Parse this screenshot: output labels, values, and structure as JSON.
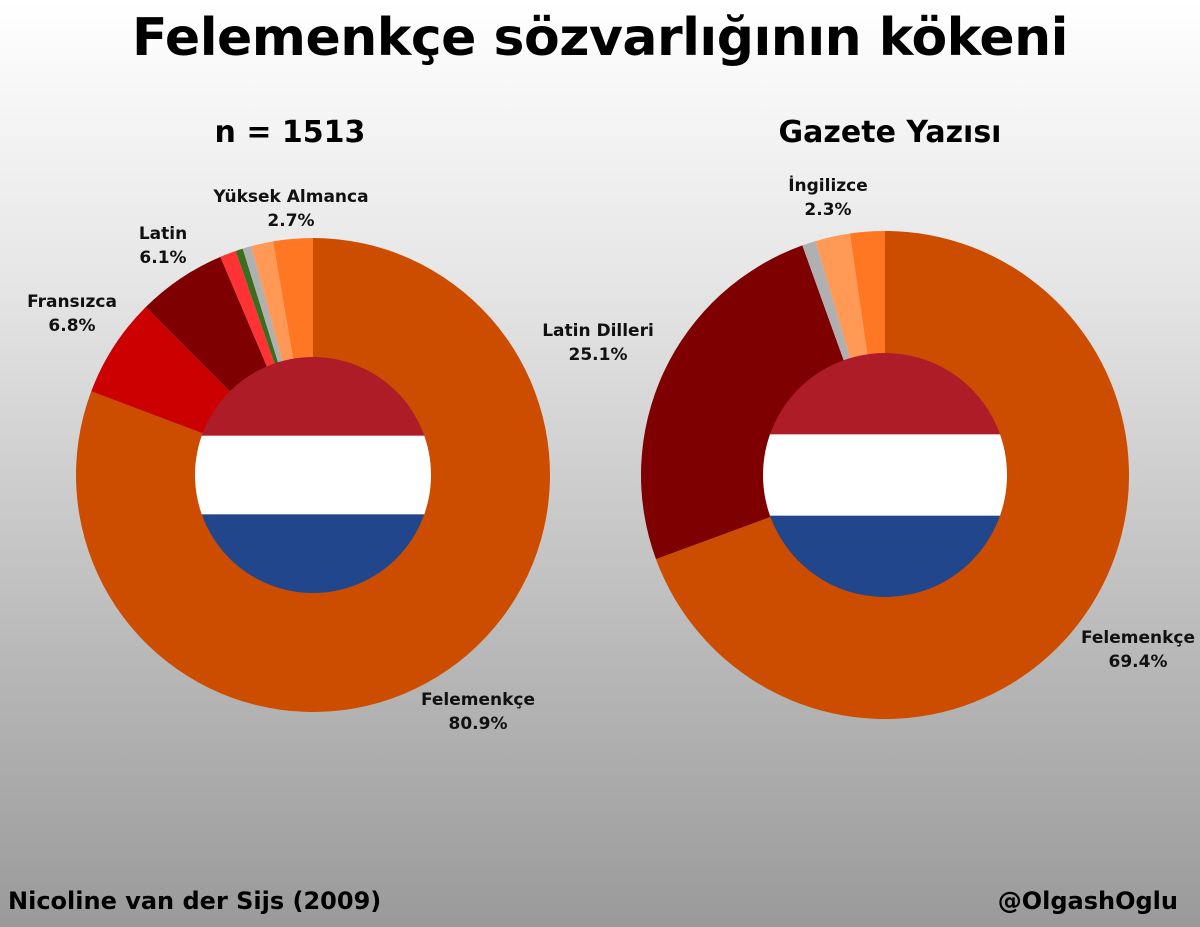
{
  "title": "Felemenkçe sözvarlığının kökeni",
  "footer": {
    "source": "Nicoline van der Sijs (2009)",
    "author": "@OlgashOglu"
  },
  "flag_colors": {
    "red": "#ae1c28",
    "white": "#ffffff",
    "blue": "#21468b"
  },
  "chart_data": [
    {
      "type": "pie",
      "title": "n = 1513",
      "series": [
        {
          "label": "Felemenkçe",
          "value": 80.9,
          "display": "80.9%",
          "color": "#cc4d00"
        },
        {
          "label": "Fransızca",
          "value": 6.8,
          "display": "6.8%",
          "color": "#cc0000"
        },
        {
          "label": "Latin",
          "value": 6.1,
          "display": "6.1%",
          "color": "#7f0000"
        },
        {
          "label": "",
          "value": 1.1,
          "display": "",
          "color": "#ff3333"
        },
        {
          "label": "",
          "value": 0.5,
          "display": "",
          "color": "#3a6e1e"
        },
        {
          "label": "",
          "value": 0.6,
          "display": "",
          "color": "#b0b0b0"
        },
        {
          "label": "",
          "value": 1.5,
          "display": "",
          "color": "#ff9955"
        },
        {
          "label": "Yüksek Almanca",
          "value": 2.7,
          "display": "2.7%",
          "color": "#ff7722"
        }
      ]
    },
    {
      "type": "pie",
      "title": "Gazete Yazısı",
      "series": [
        {
          "label": "Felemenkçe",
          "value": 69.4,
          "display": "69.4%",
          "color": "#cc4d00"
        },
        {
          "label": "Latin Dilleri",
          "value": 25.1,
          "display": "25.1%",
          "color": "#7f0000"
        },
        {
          "label": "",
          "value": 0.9,
          "display": "",
          "color": "#b0b0b0"
        },
        {
          "label": "İngilizce",
          "value": 2.3,
          "display": "2.3%",
          "color": "#ff9955"
        },
        {
          "label": "",
          "value": 2.3,
          "display": "",
          "color": "#ff7722"
        }
      ]
    }
  ]
}
